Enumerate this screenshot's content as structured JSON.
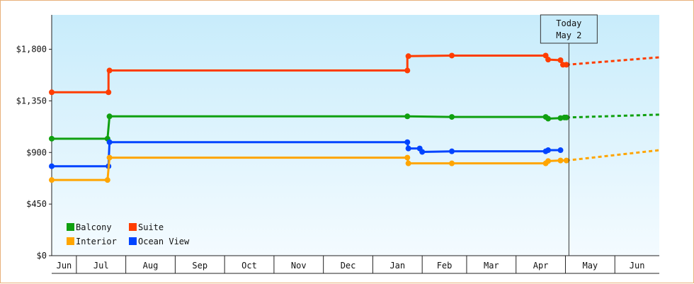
{
  "chart_data": {
    "type": "line",
    "style": "step",
    "y_ticks": [
      "$0",
      "$450",
      "$900",
      "$1,350",
      "$1,800"
    ],
    "ylim": [
      0,
      2100
    ],
    "months": [
      {
        "label": "Jun",
        "start": 0,
        "end": 0.5
      },
      {
        "label": "Jul",
        "start": 0.5,
        "end": 1.5
      },
      {
        "label": "Aug",
        "start": 1.5,
        "end": 2.5
      },
      {
        "label": "Sep",
        "start": 2.5,
        "end": 3.5
      },
      {
        "label": "Oct",
        "start": 3.5,
        "end": 4.5
      },
      {
        "label": "Nov",
        "start": 4.5,
        "end": 5.5
      },
      {
        "label": "Dec",
        "start": 5.5,
        "end": 6.5
      },
      {
        "label": "Jan",
        "start": 6.5,
        "end": 7.5
      },
      {
        "label": "Feb",
        "start": 7.5,
        "end": 8.4
      },
      {
        "label": "Mar",
        "start": 8.4,
        "end": 9.4
      },
      {
        "label": "Apr",
        "start": 9.4,
        "end": 10.4
      },
      {
        "label": "May",
        "start": 10.4,
        "end": 11.4
      },
      {
        "label": "Jun",
        "start": 11.4,
        "end": 12.3
      }
    ],
    "xlim": [
      0,
      12.3
    ],
    "today": {
      "x": 10.47,
      "line1": "Today",
      "line2": "May 2"
    },
    "legend": {
      "placement": "bottom-left"
    },
    "series": [
      {
        "name": "Suite",
        "color": "#ff3d00",
        "points": [
          [
            0,
            1425
          ],
          [
            1.15,
            1425
          ],
          [
            1.15,
            1615
          ],
          [
            7.2,
            1615
          ],
          [
            7.2,
            1740
          ],
          [
            8.1,
            1745
          ],
          [
            10.0,
            1745
          ],
          [
            10.05,
            1710
          ],
          [
            10.3,
            1705
          ],
          [
            10.35,
            1665
          ],
          [
            10.42,
            1665
          ]
        ],
        "markers": [
          [
            0,
            1425
          ],
          [
            1.15,
            1425
          ],
          [
            1.17,
            1615
          ],
          [
            7.2,
            1615
          ],
          [
            7.22,
            1740
          ],
          [
            8.1,
            1745
          ],
          [
            10.0,
            1745
          ],
          [
            10.05,
            1710
          ],
          [
            10.3,
            1705
          ],
          [
            10.35,
            1665
          ],
          [
            10.42,
            1665
          ]
        ],
        "forecast": [
          [
            10.42,
            1665
          ],
          [
            12.3,
            1730
          ]
        ]
      },
      {
        "name": "Balcony",
        "color": "#10a010",
        "points": [
          [
            0,
            1020
          ],
          [
            1.13,
            1020
          ],
          [
            1.17,
            1215
          ],
          [
            7.2,
            1215
          ],
          [
            8.1,
            1210
          ],
          [
            10.0,
            1210
          ],
          [
            10.05,
            1195
          ],
          [
            10.3,
            1200
          ],
          [
            10.42,
            1205
          ]
        ],
        "markers": [
          [
            0,
            1020
          ],
          [
            1.13,
            1020
          ],
          [
            1.17,
            1215
          ],
          [
            7.2,
            1215
          ],
          [
            8.1,
            1210
          ],
          [
            10.0,
            1210
          ],
          [
            10.05,
            1195
          ],
          [
            10.3,
            1200
          ],
          [
            10.38,
            1205
          ],
          [
            10.42,
            1205
          ]
        ],
        "forecast": [
          [
            10.42,
            1205
          ],
          [
            12.3,
            1230
          ]
        ]
      },
      {
        "name": "Ocean View",
        "color": "#0044ff",
        "points": [
          [
            0,
            780
          ],
          [
            1.15,
            780
          ],
          [
            1.17,
            990
          ],
          [
            7.2,
            990
          ],
          [
            7.22,
            935
          ],
          [
            7.45,
            935
          ],
          [
            7.5,
            905
          ],
          [
            8.1,
            910
          ],
          [
            10.0,
            910
          ],
          [
            10.05,
            920
          ],
          [
            10.3,
            920
          ]
        ],
        "markers": [
          [
            0,
            780
          ],
          [
            1.15,
            780
          ],
          [
            1.17,
            990
          ],
          [
            7.2,
            990
          ],
          [
            7.22,
            935
          ],
          [
            7.45,
            935
          ],
          [
            7.5,
            905
          ],
          [
            8.1,
            910
          ],
          [
            10.0,
            910
          ],
          [
            10.05,
            920
          ],
          [
            10.3,
            920
          ]
        ]
      },
      {
        "name": "Interior",
        "color": "#ffa500",
        "points": [
          [
            0,
            660
          ],
          [
            1.13,
            660
          ],
          [
            1.17,
            855
          ],
          [
            7.2,
            855
          ],
          [
            7.22,
            805
          ],
          [
            8.1,
            805
          ],
          [
            10.0,
            805
          ],
          [
            10.05,
            825
          ],
          [
            10.3,
            830
          ],
          [
            10.42,
            830
          ]
        ],
        "markers": [
          [
            0,
            660
          ],
          [
            1.13,
            660
          ],
          [
            1.17,
            855
          ],
          [
            7.2,
            855
          ],
          [
            7.22,
            805
          ],
          [
            8.1,
            805
          ],
          [
            10.0,
            805
          ],
          [
            10.05,
            825
          ],
          [
            10.3,
            830
          ],
          [
            10.42,
            830
          ]
        ],
        "forecast": [
          [
            10.42,
            830
          ],
          [
            12.3,
            920
          ]
        ]
      }
    ]
  }
}
